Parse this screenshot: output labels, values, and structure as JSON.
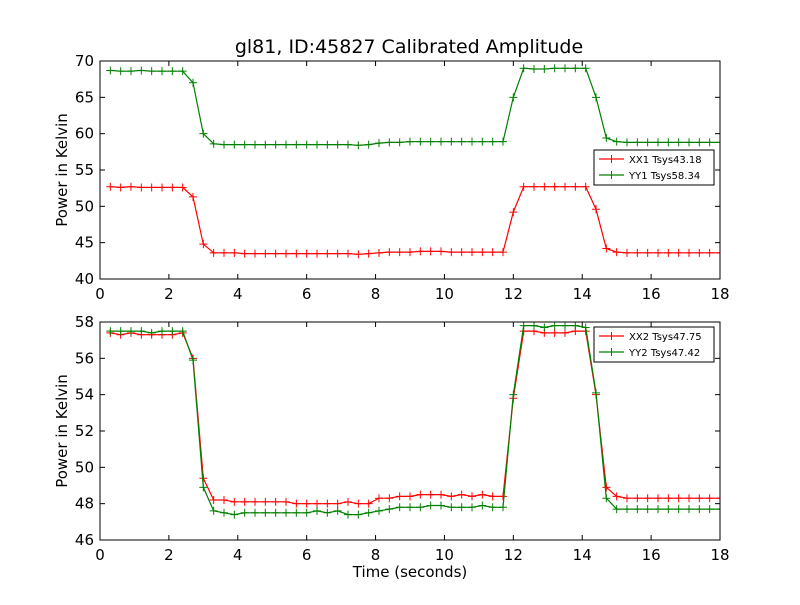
{
  "title": "gl81, ID:45827 Calibrated Amplitude",
  "chart_data": [
    {
      "type": "line",
      "xlabel": "",
      "ylabel": "Power in Kelvin",
      "xlim": [
        0,
        18
      ],
      "ylim": [
        40,
        70
      ],
      "xticks": [
        0,
        2,
        4,
        6,
        8,
        10,
        12,
        14,
        16,
        18
      ],
      "yticks": [
        40,
        45,
        50,
        55,
        60,
        65,
        70
      ],
      "grid": false,
      "legend_position": "right",
      "x": [
        0.3,
        0.6,
        0.9,
        1.2,
        1.5,
        1.8,
        2.1,
        2.4,
        2.7,
        3.0,
        3.3,
        3.6,
        3.9,
        4.2,
        4.5,
        4.8,
        5.1,
        5.4,
        5.7,
        6.0,
        6.3,
        6.6,
        6.9,
        7.2,
        7.5,
        7.8,
        8.1,
        8.4,
        8.7,
        9.0,
        9.3,
        9.6,
        9.9,
        10.2,
        10.5,
        10.8,
        11.1,
        11.4,
        11.7,
        12.0,
        12.3,
        12.6,
        12.9,
        13.2,
        13.5,
        13.8,
        14.1,
        14.4,
        14.7,
        15.0,
        15.3,
        15.6,
        15.9,
        16.2,
        16.5,
        16.8,
        17.1,
        17.4,
        17.7,
        18.0
      ],
      "series": [
        {
          "name": "XX1 Tsys43.18",
          "color": "#ff0000",
          "values": [
            52.7,
            52.6,
            52.7,
            52.6,
            52.6,
            52.6,
            52.6,
            52.6,
            51.3,
            44.8,
            43.6,
            43.6,
            43.6,
            43.5,
            43.5,
            43.5,
            43.5,
            43.5,
            43.5,
            43.5,
            43.5,
            43.5,
            43.5,
            43.5,
            43.4,
            43.5,
            43.6,
            43.7,
            43.7,
            43.7,
            43.8,
            43.8,
            43.8,
            43.7,
            43.7,
            43.7,
            43.7,
            43.7,
            43.7,
            49.2,
            52.7,
            52.7,
            52.7,
            52.7,
            52.7,
            52.7,
            52.7,
            49.6,
            44.2,
            43.7,
            43.6,
            43.6,
            43.6,
            43.6,
            43.6,
            43.6,
            43.6,
            43.6,
            43.6,
            43.6
          ]
        },
        {
          "name": "YY1 Tsys58.34",
          "color": "#008000",
          "values": [
            68.7,
            68.6,
            68.6,
            68.7,
            68.6,
            68.6,
            68.6,
            68.6,
            67.0,
            60.0,
            58.6,
            58.5,
            58.5,
            58.5,
            58.5,
            58.5,
            58.5,
            58.5,
            58.5,
            58.5,
            58.5,
            58.5,
            58.5,
            58.5,
            58.4,
            58.5,
            58.7,
            58.8,
            58.8,
            58.9,
            58.9,
            58.9,
            58.9,
            58.9,
            58.9,
            58.9,
            58.9,
            58.9,
            58.9,
            65.0,
            69.0,
            68.9,
            68.9,
            69.0,
            69.0,
            69.0,
            69.0,
            65.0,
            59.4,
            58.9,
            58.8,
            58.8,
            58.8,
            58.8,
            58.8,
            58.8,
            58.8,
            58.8,
            58.8,
            58.8
          ]
        }
      ]
    },
    {
      "type": "line",
      "xlabel": "Time (seconds)",
      "ylabel": "Power in Kelvin",
      "xlim": [
        0,
        18
      ],
      "ylim": [
        46,
        58
      ],
      "xticks": [
        0,
        2,
        4,
        6,
        8,
        10,
        12,
        14,
        16,
        18
      ],
      "yticks": [
        46,
        48,
        50,
        52,
        54,
        56,
        58
      ],
      "grid": false,
      "legend_position": "top-right",
      "x": [
        0.3,
        0.6,
        0.9,
        1.2,
        1.5,
        1.8,
        2.1,
        2.4,
        2.7,
        3.0,
        3.3,
        3.6,
        3.9,
        4.2,
        4.5,
        4.8,
        5.1,
        5.4,
        5.7,
        6.0,
        6.3,
        6.6,
        6.9,
        7.2,
        7.5,
        7.8,
        8.1,
        8.4,
        8.7,
        9.0,
        9.3,
        9.6,
        9.9,
        10.2,
        10.5,
        10.8,
        11.1,
        11.4,
        11.7,
        12.0,
        12.3,
        12.6,
        12.9,
        13.2,
        13.5,
        13.8,
        14.1,
        14.4,
        14.7,
        15.0,
        15.3,
        15.6,
        15.9,
        16.2,
        16.5,
        16.8,
        17.1,
        17.4,
        17.7,
        18.0
      ],
      "series": [
        {
          "name": "XX2 Tsys47.75",
          "color": "#ff0000",
          "values": [
            57.4,
            57.3,
            57.4,
            57.3,
            57.3,
            57.3,
            57.3,
            57.4,
            56.0,
            49.4,
            48.2,
            48.2,
            48.1,
            48.1,
            48.1,
            48.1,
            48.1,
            48.1,
            48.0,
            48.0,
            48.0,
            48.0,
            48.0,
            48.1,
            48.0,
            48.0,
            48.3,
            48.3,
            48.4,
            48.4,
            48.5,
            48.5,
            48.5,
            48.4,
            48.5,
            48.4,
            48.5,
            48.4,
            48.4,
            53.8,
            57.5,
            57.5,
            57.4,
            57.4,
            57.4,
            57.5,
            57.5,
            54.0,
            48.9,
            48.4,
            48.3,
            48.3,
            48.3,
            48.3,
            48.3,
            48.3,
            48.3,
            48.3,
            48.3,
            48.3
          ]
        },
        {
          "name": "YY2 Tsys47.42",
          "color": "#008000",
          "values": [
            57.5,
            57.5,
            57.5,
            57.5,
            57.4,
            57.5,
            57.5,
            57.5,
            55.9,
            48.9,
            47.6,
            47.5,
            47.4,
            47.5,
            47.5,
            47.5,
            47.5,
            47.5,
            47.5,
            47.5,
            47.6,
            47.5,
            47.6,
            47.4,
            47.4,
            47.5,
            47.6,
            47.7,
            47.8,
            47.8,
            47.8,
            47.9,
            47.9,
            47.8,
            47.8,
            47.8,
            47.9,
            47.8,
            47.8,
            54.0,
            57.8,
            57.8,
            57.7,
            57.8,
            57.8,
            57.8,
            57.7,
            54.1,
            48.3,
            47.7,
            47.7,
            47.7,
            47.7,
            47.7,
            47.7,
            47.7,
            47.7,
            47.7,
            47.7,
            47.7
          ]
        }
      ]
    }
  ]
}
